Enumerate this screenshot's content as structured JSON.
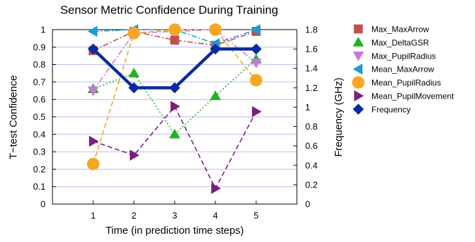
{
  "chart_data": {
    "type": "line",
    "title": "Sensor Metric Confidence During Training",
    "xlabel": "Time (in prediction time steps)",
    "ylabel": "T−test Confidence",
    "y2label": "Frequency (GHz)",
    "x": [
      1,
      2,
      3,
      4,
      5
    ],
    "x_ticks": [
      "1",
      "2",
      "3",
      "4",
      "5"
    ],
    "xlim": [
      0,
      6
    ],
    "ylim": [
      0,
      1
    ],
    "y_ticks": [
      "0",
      "0.1",
      "0.2",
      "0.3",
      "0.4",
      "0.5",
      "0.6",
      "0.7",
      "0.8",
      "0.9",
      "1"
    ],
    "y2lim": [
      0,
      1.8
    ],
    "y2_ticks": [
      "0",
      "0.2",
      "0.4",
      "0.6",
      "0.8",
      "1",
      "1.2",
      "1.4",
      "1.6",
      "1.8"
    ],
    "grid": true,
    "legend_position": "right",
    "series": [
      {
        "name": "Max_MaxArrow",
        "values": [
          0.88,
          0.99,
          0.94,
          0.91,
          0.99
        ],
        "axis": "left",
        "color": "#C0504D",
        "marker": "square",
        "line": "dashdot"
      },
      {
        "name": "Max_DeltaGSR",
        "values": [
          0.66,
          0.75,
          0.4,
          0.62,
          0.83
        ],
        "axis": "left",
        "color": "#22B322",
        "marker": "triangle-up",
        "line": "dotted"
      },
      {
        "name": "Max_PupilRadius",
        "values": [
          0.65,
          0.98,
          0.99,
          1.0,
          0.81
        ],
        "axis": "left",
        "color": "#C878DC",
        "marker": "triangle-down",
        "line": "dashdot"
      },
      {
        "name": "Mean_MaxArrow",
        "values": [
          0.99,
          1.0,
          1.0,
          0.92,
          1.0
        ],
        "axis": "left",
        "color": "#1E9BD7",
        "marker": "triangle-left",
        "line": "dashdot"
      },
      {
        "name": "Mean_PupilRadius",
        "values": [
          0.23,
          0.98,
          1.0,
          1.0,
          0.71
        ],
        "axis": "left",
        "color": "#F5A623",
        "marker": "circle",
        "line": "dashed"
      },
      {
        "name": "Mean_PupilMovement",
        "values": [
          0.36,
          0.28,
          0.56,
          0.09,
          0.53
        ],
        "axis": "left",
        "color": "#7B1F7E",
        "marker": "triangle-right",
        "line": "dashed"
      },
      {
        "name": "Frequency",
        "values": [
          1.6,
          1.2,
          1.2,
          1.6,
          1.6
        ],
        "axis": "right",
        "color": "#0A2A9E",
        "marker": "diamond",
        "line": "solid"
      }
    ]
  }
}
